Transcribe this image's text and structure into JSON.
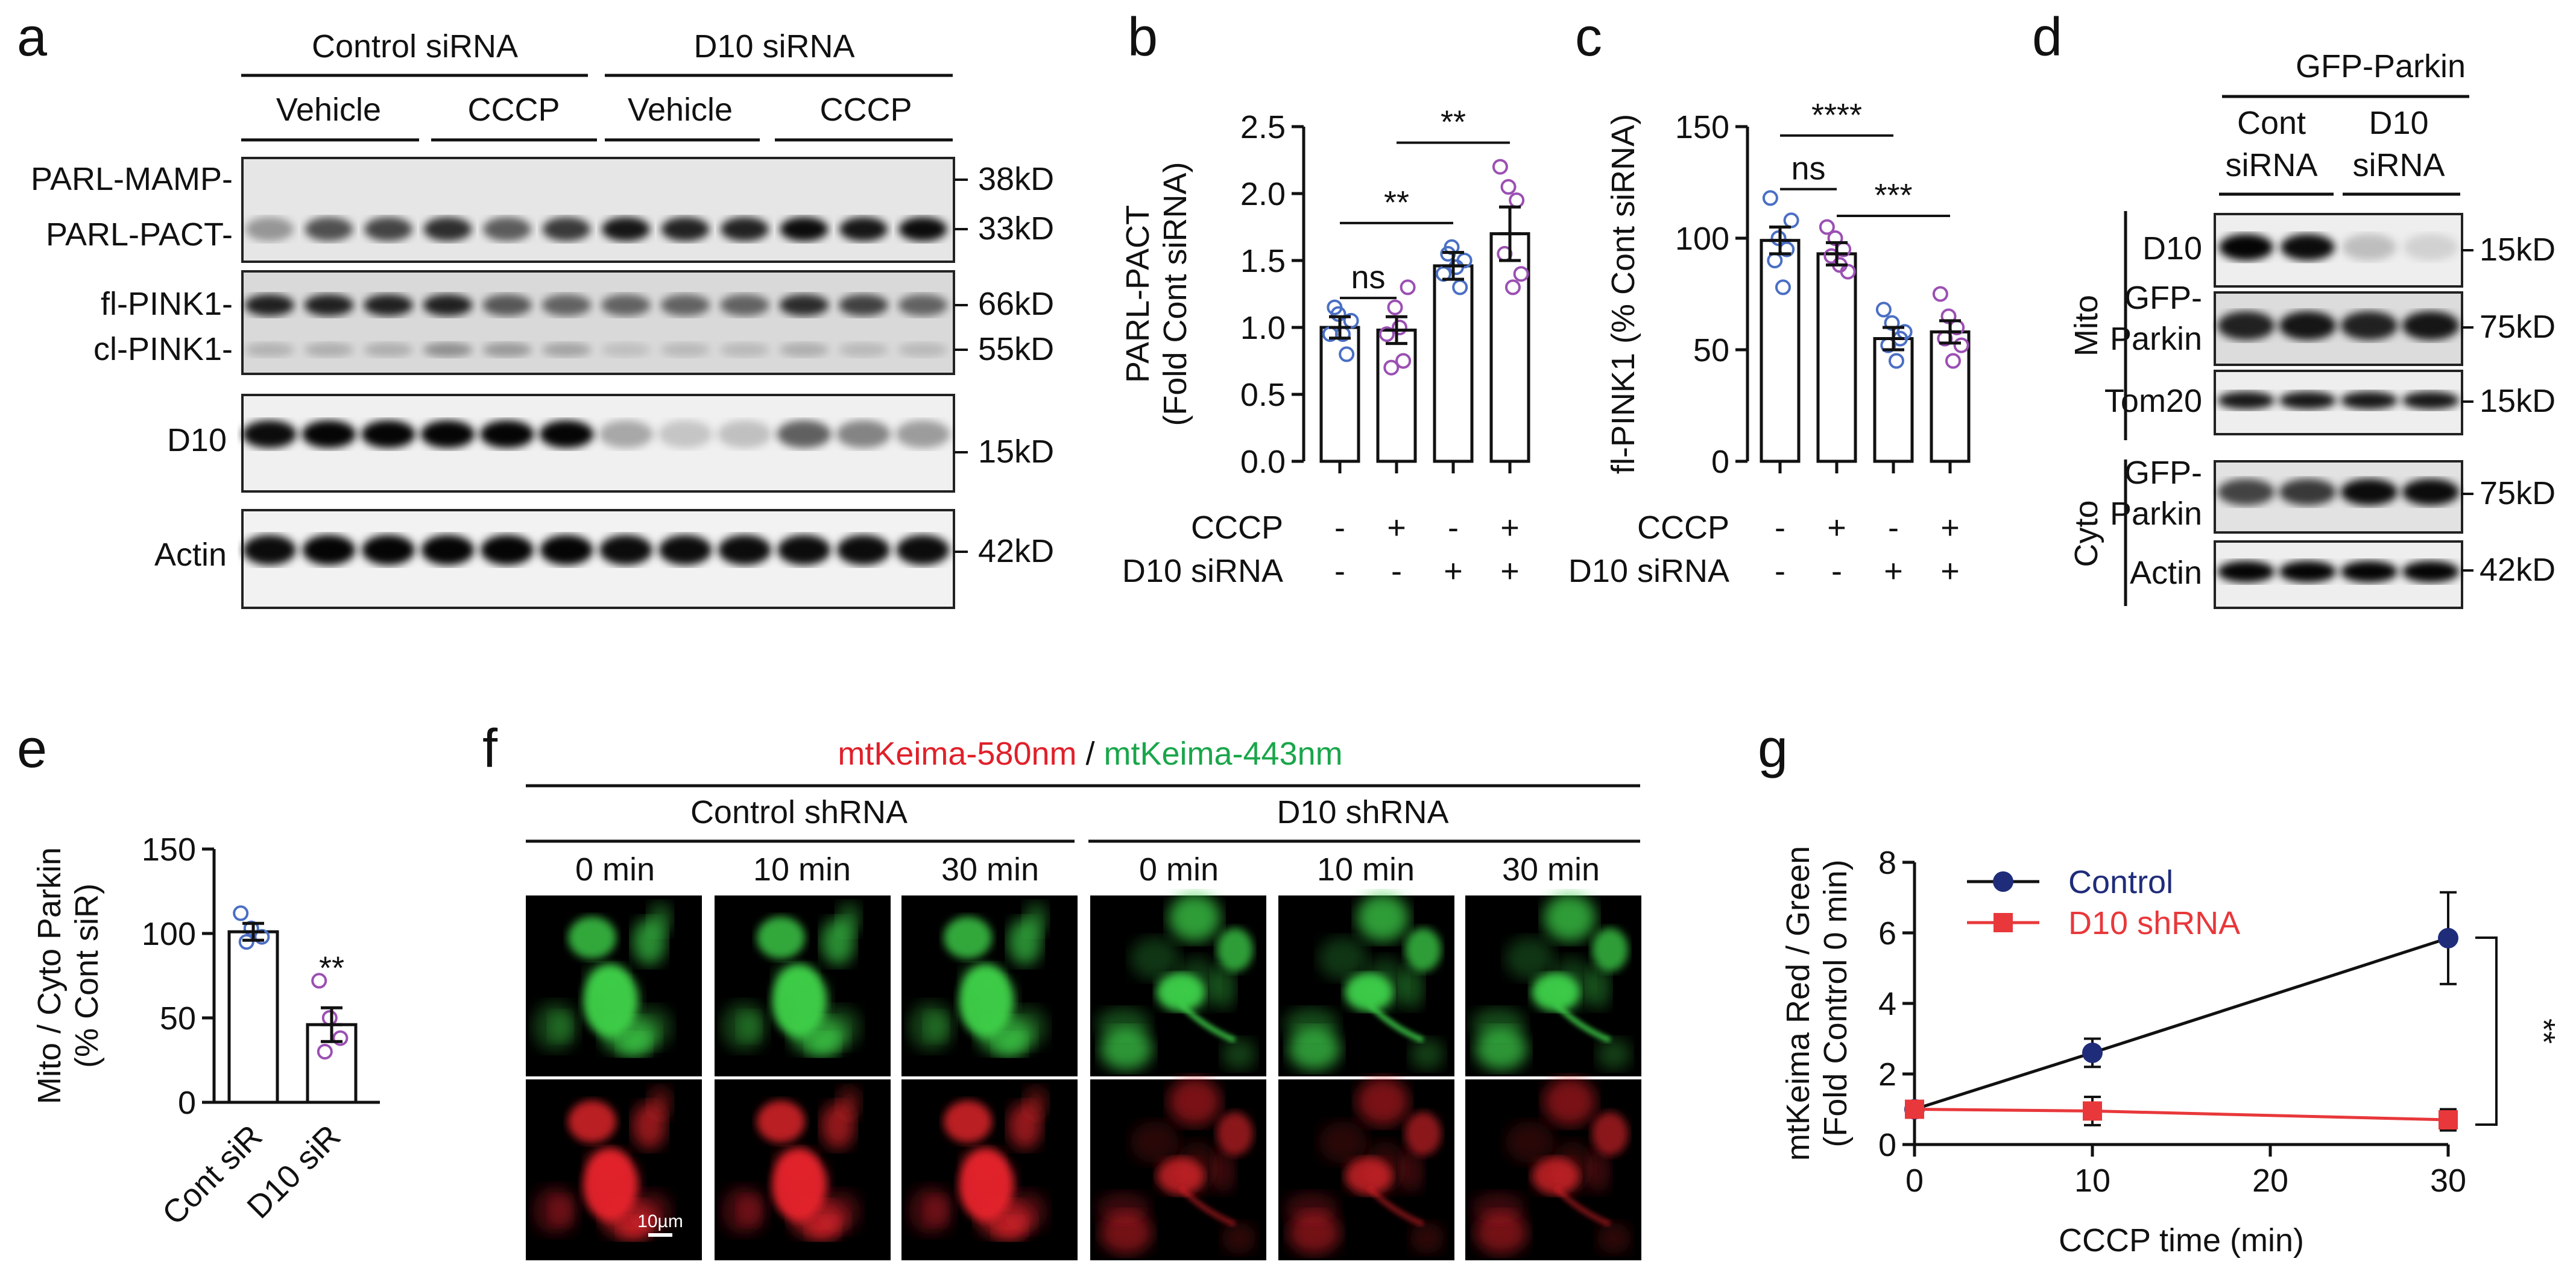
{
  "panel_letters": [
    "a",
    "b",
    "c",
    "d",
    "e",
    "f",
    "g"
  ],
  "panel_a": {
    "group_labels": [
      "Control siRNA",
      "D10 siRNA"
    ],
    "treatment_labels": [
      "Vehicle",
      "CCCP",
      "Vehicle",
      "CCCP"
    ],
    "row_labels": [
      "PARL-MAMP-",
      "PARL-PACT-",
      "fl-PINK1-",
      "cl-PINK1-",
      "D10",
      "Actin"
    ],
    "mw_labels": [
      "38kD",
      "33kD",
      "66kD",
      "55kD",
      "15kD",
      "42kD"
    ]
  },
  "panel_d": {
    "header": "GFP-Parkin",
    "col_labels": [
      "Cont",
      "siRNA",
      "D10",
      "siRNA"
    ],
    "section_labels": [
      "Mito",
      "Cyto"
    ],
    "row_labels": [
      "D10",
      "GFP-",
      "Parkin",
      "Tom20",
      "GFP-",
      "Parkin",
      "Actin"
    ],
    "mw_labels": [
      "15kD",
      "75kD",
      "15kD",
      "75kD",
      "42kD"
    ]
  },
  "panel_f": {
    "title_red": "mtKeima-580nm",
    "title_sep": " / ",
    "title_green": "mtKeima-443nm",
    "group_labels": [
      "Control shRNA",
      "D10 shRNA"
    ],
    "time_labels": [
      "0 min",
      "10 min",
      "30 min",
      "0 min",
      "10 min",
      "30 min"
    ],
    "scalebar_label": "10µm"
  },
  "chart_data": [
    {
      "id": "b",
      "type": "bar",
      "ylabel": "PARL-PACT",
      "ylabel2": "(Fold Cont siRNA)",
      "ylim": [
        0,
        2.5
      ],
      "yticks": [
        0,
        0.5,
        1.0,
        1.5,
        2.0,
        2.5
      ],
      "ytick_labels": [
        "0.0",
        "0.5",
        "1.0",
        "1.5",
        "2.0",
        "2.5"
      ],
      "conditions": [
        {
          "label": "CCCP",
          "values": [
            "-",
            "+",
            "-",
            "+"
          ]
        },
        {
          "label": "D10 siRNA",
          "values": [
            "-",
            "-",
            "+",
            "+"
          ]
        }
      ],
      "values": [
        1.0,
        0.98,
        1.46,
        1.7
      ],
      "errors": [
        0.08,
        0.1,
        0.1,
        0.2
      ],
      "points": [
        [
          0.95,
          1.1,
          0.8,
          1.15,
          0.95,
          1.05
        ],
        [
          0.95,
          1.15,
          0.75,
          0.7,
          1.0,
          1.3
        ],
        [
          1.4,
          1.6,
          1.3,
          1.55,
          1.45,
          1.5
        ],
        [
          2.2,
          2.05,
          1.95,
          1.55,
          1.3,
          1.4
        ]
      ],
      "point_colors": [
        "#4a6fc4",
        "#9b4fb3",
        "#4a6fc4",
        "#9b4fb3"
      ],
      "significance": [
        {
          "from": 0,
          "to": 1,
          "y": 1.22,
          "label": "ns"
        },
        {
          "from": 0,
          "to": 2,
          "y": 1.78,
          "label": "**"
        },
        {
          "from": 1,
          "to": 3,
          "y": 2.38,
          "label": "**"
        }
      ]
    },
    {
      "id": "c",
      "type": "bar",
      "ylabel": "fl-PINK1 (% Cont siRNA)",
      "ylim": [
        0,
        150
      ],
      "yticks": [
        0,
        50,
        100,
        150
      ],
      "ytick_labels": [
        "0",
        "50",
        "100",
        "150"
      ],
      "conditions": [
        {
          "label": "CCCP",
          "values": [
            "-",
            "+",
            "-",
            "+"
          ]
        },
        {
          "label": "D10 siRNA",
          "values": [
            "-",
            "-",
            "+",
            "+"
          ]
        }
      ],
      "values": [
        99,
        93,
        55,
        58
      ],
      "errors": [
        6,
        5,
        5,
        5
      ],
      "points": [
        [
          118,
          100,
          95,
          90,
          78,
          108
        ],
        [
          105,
          100,
          95,
          92,
          88,
          85
        ],
        [
          68,
          62,
          55,
          52,
          45,
          58
        ],
        [
          75,
          65,
          60,
          55,
          45,
          52
        ]
      ],
      "point_colors": [
        "#4a6fc4",
        "#9b4fb3",
        "#4a6fc4",
        "#9b4fb3"
      ],
      "significance": [
        {
          "from": 0,
          "to": 1,
          "y": 122,
          "label": "ns"
        },
        {
          "from": 0,
          "to": 2,
          "y": 146,
          "label": "****"
        },
        {
          "from": 1,
          "to": 3,
          "y": 110,
          "label": "***"
        }
      ]
    },
    {
      "id": "e",
      "type": "bar",
      "ylabel": "Mito / Cyto Parkin",
      "ylabel2": "(% Cont siR)",
      "ylim": [
        0,
        150
      ],
      "yticks": [
        0,
        50,
        100,
        150
      ],
      "ytick_labels": [
        "0",
        "50",
        "100",
        "150"
      ],
      "categories": [
        "Cont siR",
        "D10 siR"
      ],
      "values": [
        101,
        46
      ],
      "errors": [
        5,
        10
      ],
      "points": [
        [
          112,
          103,
          98,
          95
        ],
        [
          72,
          50,
          38,
          30
        ]
      ],
      "point_colors": [
        "#4a6fc4",
        "#9b4fb3"
      ],
      "annotations": [
        {
          "index": 1,
          "label": "**"
        }
      ]
    },
    {
      "id": "g",
      "type": "line",
      "xlabel": "CCCP time (min)",
      "ylabel": "mtKeima Red / Green",
      "ylabel2": "(Fold Control 0 min)",
      "xlim": [
        0,
        30
      ],
      "ylim": [
        0,
        8
      ],
      "xticks": [
        0,
        10,
        20,
        30
      ],
      "yticks": [
        0,
        2,
        4,
        6,
        8
      ],
      "legend_position": "top-left",
      "series": [
        {
          "name": "Control",
          "x": [
            0,
            10,
            30
          ],
          "y": [
            1.0,
            2.6,
            5.85
          ],
          "errors": [
            0.1,
            0.4,
            1.3
          ],
          "color": "#1f2c7a",
          "marker": "circle"
        },
        {
          "name": "D10 shRNA",
          "x": [
            0,
            10,
            30
          ],
          "y": [
            1.0,
            0.95,
            0.7
          ],
          "errors": [
            0.1,
            0.4,
            0.3
          ],
          "color": "#e8383b",
          "marker": "square"
        }
      ],
      "significance_label": "**"
    }
  ]
}
